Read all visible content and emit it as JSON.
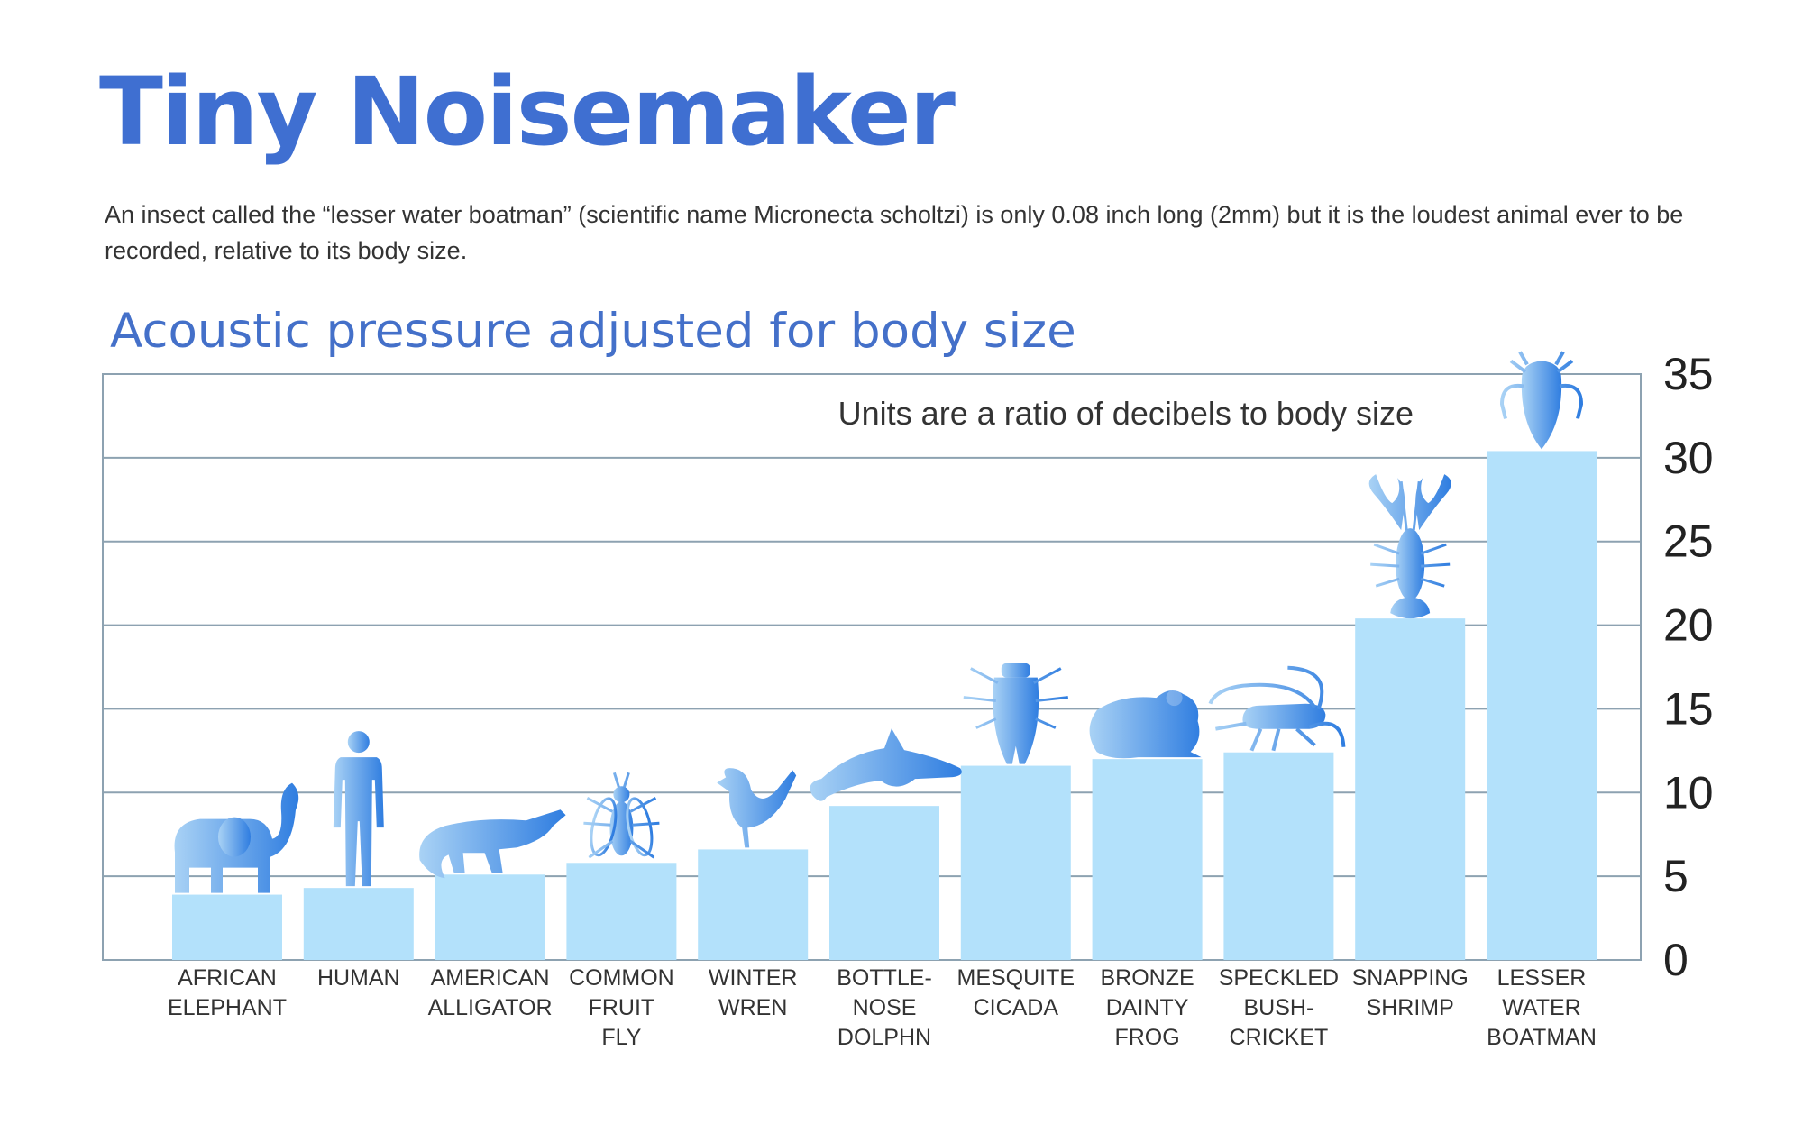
{
  "header": {
    "title": "Tiny Noisemaker",
    "description": "An insect called the “lesser water boatman” (scientific name Micronecta scholtzi) is only 0.08 inch long (2mm) but it is the loudest animal ever to be recorded, relative to its body size."
  },
  "chart_data": {
    "type": "bar",
    "title": "Acoustic pressure adjusted for body size",
    "annotation": "Units are a ratio of decibels to body size",
    "ylim": [
      0,
      35
    ],
    "yticks": [
      0,
      5,
      10,
      15,
      20,
      25,
      30,
      35
    ],
    "grid": true,
    "y_axis_side": "right",
    "categories": [
      [
        "AFRICAN",
        "ELEPHANT"
      ],
      [
        "HUMAN"
      ],
      [
        "AMERICAN",
        "ALLIGATOR"
      ],
      [
        "COMMON",
        "FRUIT",
        "FLY"
      ],
      [
        "WINTER",
        "WREN"
      ],
      [
        "BOTTLE-",
        "NOSE",
        "DOLPHN"
      ],
      [
        "MESQUITE",
        "CICADA"
      ],
      [
        "BRONZE",
        "DAINTY",
        "FROG"
      ],
      [
        "SPECKLED",
        "BUSH-",
        "CRICKET"
      ],
      [
        "SNAPPING",
        "SHRIMP"
      ],
      [
        "LESSER",
        "WATER",
        "BOATMAN"
      ]
    ],
    "values": [
      3.9,
      4.3,
      5.1,
      5.8,
      6.6,
      9.2,
      11.6,
      12.0,
      12.4,
      20.4,
      30.4
    ],
    "icons": [
      "elephant-icon",
      "human-icon",
      "alligator-icon",
      "fruit-fly-icon",
      "wren-icon",
      "dolphin-icon",
      "cicada-icon",
      "frog-icon",
      "bush-cricket-icon",
      "shrimp-icon",
      "water-boatman-icon"
    ],
    "colors": {
      "bar": "#b3e1fb",
      "icon_light": "#a9d2f5",
      "icon_dark": "#2f7de0",
      "grid": "#8da2b1",
      "title": "#3f6fd1"
    }
  }
}
